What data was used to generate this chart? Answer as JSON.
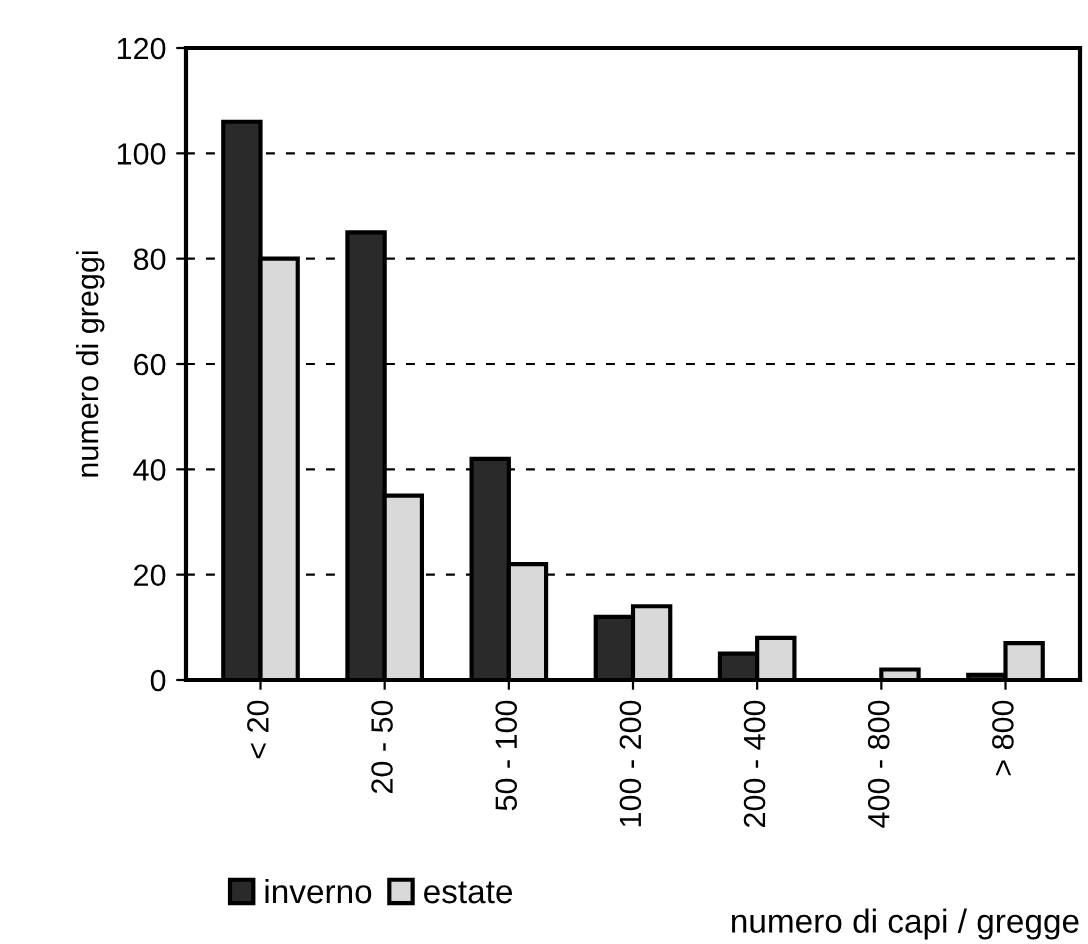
{
  "chart_data": {
    "type": "bar",
    "ylabel": "numero di greggi",
    "xlabel": "numero di capi / gregge",
    "categories": [
      "< 20",
      "20 - 50",
      "50 - 100",
      "100 - 200",
      "200 - 400",
      "400 - 800",
      "> 800"
    ],
    "series": [
      {
        "name": "inverno",
        "color": "#2a2a2a",
        "values": [
          106,
          85,
          42,
          12,
          5,
          null,
          1
        ]
      },
      {
        "name": "estate",
        "color": "#d9d9d9",
        "values": [
          80,
          35,
          22,
          14,
          8,
          2,
          7
        ]
      }
    ],
    "ylim": [
      0,
      120
    ],
    "yticks": [
      0,
      20,
      40,
      60,
      80,
      100,
      120
    ],
    "grid": "y",
    "legend": "bottom left"
  }
}
